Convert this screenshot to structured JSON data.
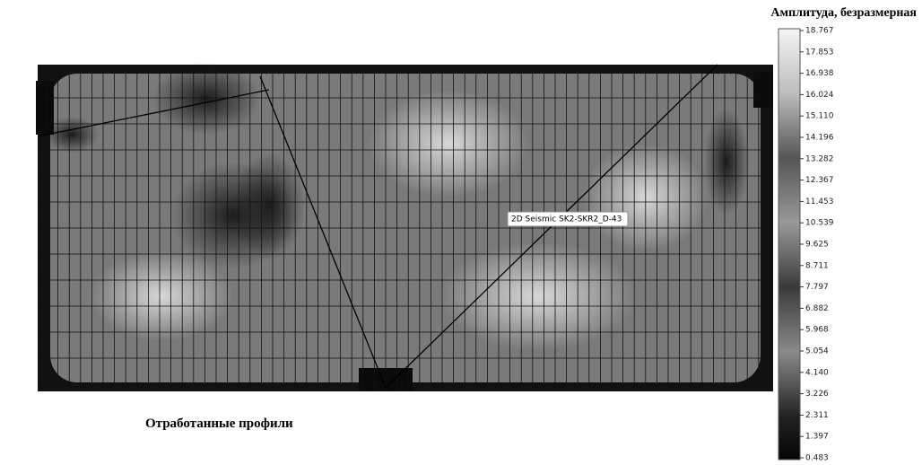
{
  "title": "Амплитуда, безразмерная",
  "x_label": "Отработанные профили",
  "callout": "2D Seismic SK2-SKR2_D-43",
  "colorbar": {
    "lim": [
      0.483,
      18.767
    ],
    "ticks": [
      18.767,
      17.853,
      16.938,
      16.024,
      {
        "value": 15.11,
        "label": "15.110"
      },
      14.196,
      13.282,
      12.367,
      11.453,
      10.539,
      9.625,
      8.711,
      7.797,
      6.882,
      5.968,
      5.054,
      {
        "value": 4.14,
        "label": "4.140"
      },
      3.226,
      2.311,
      1.397,
      0.483
    ]
  }
}
